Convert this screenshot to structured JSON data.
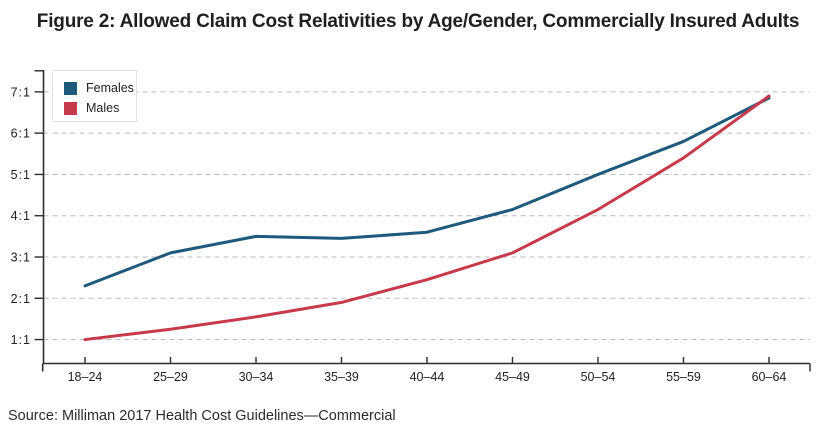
{
  "title": "Figure 2: Allowed Claim Cost Relativities by Age/Gender, Commercially Insured Adults",
  "source": "Source: Milliman 2017 Health Cost Guidelines—Commercial",
  "colors": {
    "females_line": "#1d5a7c",
    "males_line": "#c73a4b",
    "gridline": "#bbbbbb",
    "axis": "#2e2e2e",
    "tick_text": "#222222",
    "title_text": "#1f1f1f"
  },
  "chart_data": {
    "type": "line",
    "title": "Figure 2: Allowed Claim Cost Relativities by Age/Gender, Commercially Insured Adults",
    "xlabel": "",
    "ylabel": "",
    "categories": [
      "18–24",
      "25–29",
      "30–34",
      "35–39",
      "40–44",
      "45–49",
      "50–54",
      "55–59",
      "60–64"
    ],
    "y_tick_labels": [
      "1:1",
      "2:1",
      "3:1",
      "4:1",
      "5:1",
      "6:1",
      "7:1"
    ],
    "y_tick_values": [
      1,
      2,
      3,
      4,
      5,
      6,
      7
    ],
    "ylim": [
      0.42,
      7.53
    ],
    "grid": "horizontal-dashed",
    "legend_position": "top-left",
    "series": [
      {
        "name": "Females",
        "color": "#1d5a7c",
        "values": [
          2.3,
          3.1,
          3.5,
          3.45,
          3.6,
          4.15,
          5.0,
          5.8,
          6.85
        ]
      },
      {
        "name": "Males",
        "color": "#c73a4b",
        "values": [
          1.0,
          1.25,
          1.55,
          1.9,
          2.45,
          3.1,
          4.15,
          5.4,
          6.9
        ]
      }
    ]
  }
}
